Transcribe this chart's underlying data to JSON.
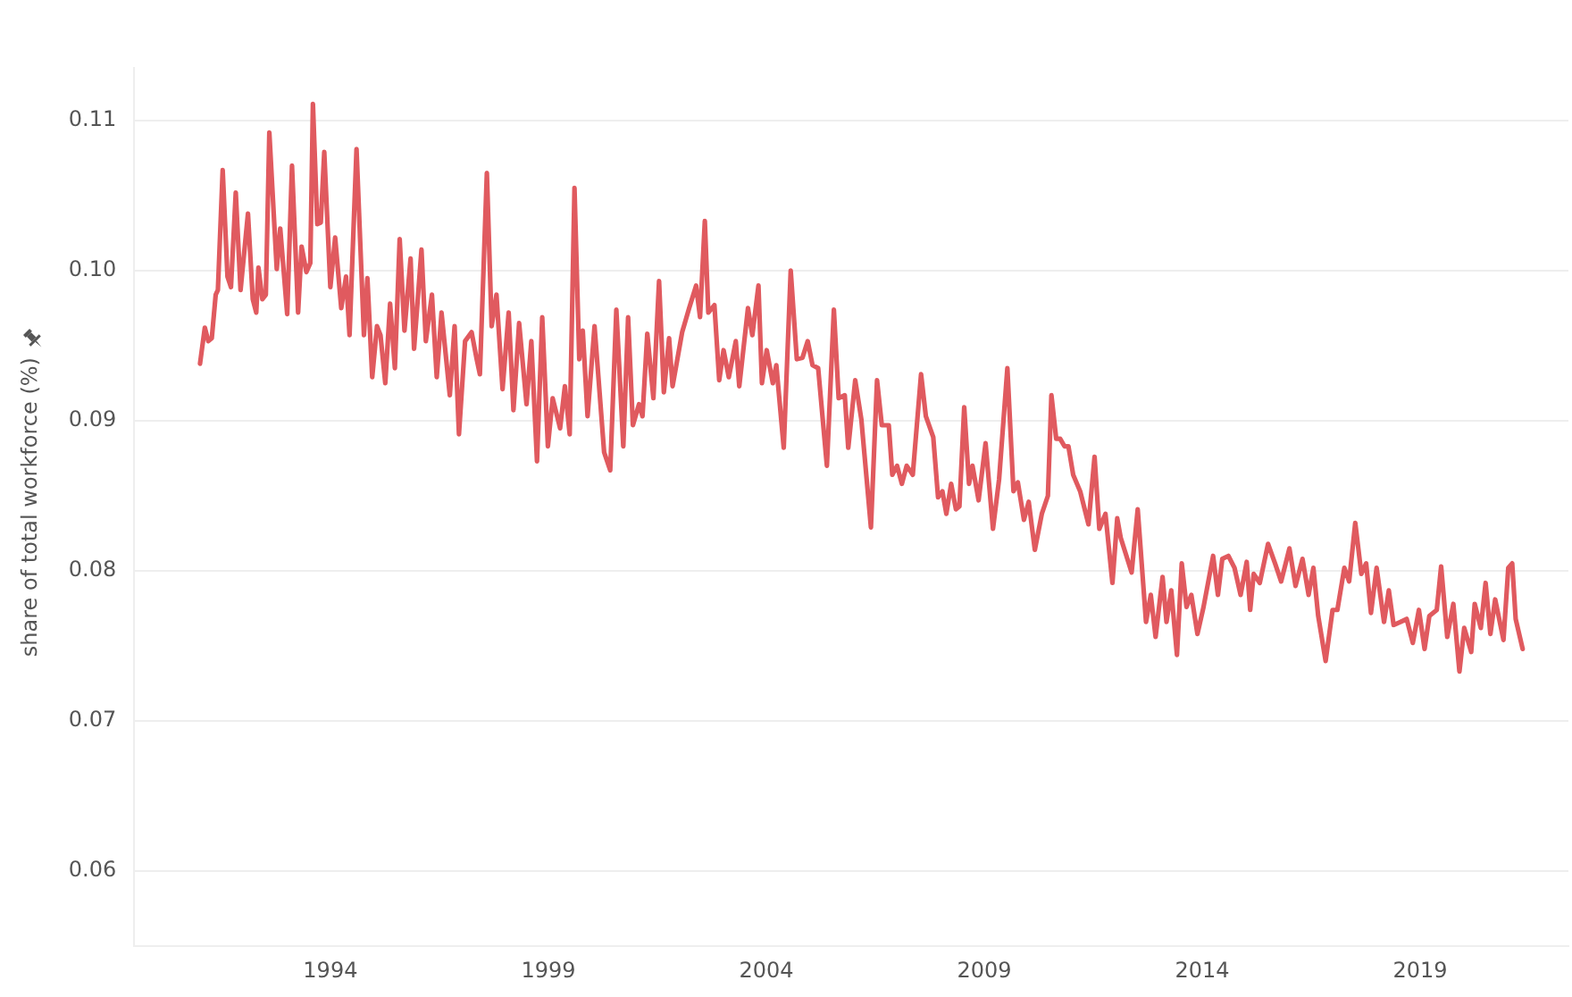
{
  "chart_data": {
    "type": "line",
    "ylabel": "share of total workforce (%)",
    "xlim": [
      1989.5,
      2022.4
    ],
    "xticks": [
      1994,
      1999,
      2004,
      2009,
      2014,
      2019
    ],
    "ylim": [
      0.055,
      0.1135
    ],
    "yticks": [
      0.06,
      0.07,
      0.08,
      0.09,
      {
        "value": 0.1,
        "label": "0.10"
      },
      0.11
    ],
    "grid": "y",
    "legend": false,
    "marker": "none",
    "line_style": "solid",
    "x": [
      1991.01,
      1991.12,
      1991.2,
      1991.28,
      1991.37,
      1991.42,
      1991.53,
      1991.64,
      1991.72,
      1991.83,
      1991.94,
      1992.11,
      1992.22,
      1992.3,
      1992.35,
      1992.44,
      1992.52,
      1992.6,
      1992.77,
      1992.85,
      1993.01,
      1993.12,
      1993.26,
      1993.34,
      1993.45,
      1993.54,
      1993.6,
      1993.7,
      1993.78,
      1993.86,
      1994.0,
      1994.11,
      1994.25,
      1994.36,
      1994.44,
      1994.6,
      1994.77,
      1994.85,
      1994.96,
      1995.07,
      1995.15,
      1995.26,
      1995.37,
      1995.48,
      1995.59,
      1995.7,
      1995.84,
      1995.92,
      1996.09,
      1996.19,
      1996.33,
      1996.44,
      1996.55,
      1996.74,
      1996.85,
      1996.95,
      1997.09,
      1997.24,
      1997.35,
      1997.43,
      1997.59,
      1997.7,
      1997.81,
      1997.95,
      1998.09,
      1998.2,
      1998.33,
      1998.5,
      1998.61,
      1998.74,
      1998.86,
      1998.99,
      1999.1,
      1999.27,
      1999.38,
      1999.49,
      1999.6,
      1999.71,
      1999.79,
      1999.9,
      2000.06,
      2000.28,
      2000.42,
      2000.56,
      2000.72,
      2000.83,
      2000.94,
      2001.08,
      2001.16,
      2001.27,
      2001.41,
      2001.54,
      2001.65,
      2001.77,
      2001.85,
      2002.07,
      2002.23,
      2002.39,
      2002.48,
      2002.59,
      2002.67,
      2002.81,
      2002.92,
      2003.02,
      2003.14,
      2003.3,
      2003.38,
      2003.58,
      2003.68,
      2003.82,
      2003.9,
      2004.01,
      2004.15,
      2004.23,
      2004.4,
      2004.56,
      2004.7,
      2004.83,
      2004.95,
      2005.06,
      2005.19,
      2005.39,
      2005.55,
      2005.66,
      2005.8,
      2005.88,
      2006.04,
      2006.18,
      2006.4,
      2006.54,
      2006.65,
      2006.81,
      2006.89,
      2007.0,
      2007.11,
      2007.22,
      2007.36,
      2007.55,
      2007.66,
      2007.83,
      2007.94,
      2008.04,
      2008.13,
      2008.24,
      2008.35,
      2008.43,
      2008.54,
      2008.65,
      2008.73,
      2008.87,
      2009.03,
      2009.2,
      2009.34,
      2009.53,
      2009.67,
      2009.77,
      2009.91,
      2010.02,
      2010.16,
      2010.32,
      2010.46,
      2010.54,
      2010.65,
      2010.74,
      2010.84,
      2010.93,
      2011.04,
      2011.2,
      2011.39,
      2011.53,
      2011.64,
      2011.78,
      2011.94,
      2012.05,
      2012.13,
      2012.38,
      2012.52,
      2012.71,
      2012.82,
      2012.93,
      2013.09,
      2013.18,
      2013.29,
      2013.42,
      2013.53,
      2013.64,
      2013.75,
      2013.89,
      2014.03,
      2014.25,
      2014.36,
      2014.46,
      2014.6,
      2014.74,
      2014.88,
      2015.02,
      2015.1,
      2015.18,
      2015.32,
      2015.51,
      2015.67,
      2015.81,
      2016.0,
      2016.14,
      2016.3,
      2016.44,
      2016.55,
      2016.66,
      2016.83,
      2016.99,
      2017.1,
      2017.26,
      2017.37,
      2017.51,
      2017.65,
      2017.76,
      2017.87,
      2018.0,
      2018.17,
      2018.28,
      2018.39,
      2018.55,
      2018.69,
      2018.83,
      2018.97,
      2019.1,
      2019.21,
      2019.38,
      2019.48,
      2019.62,
      2019.76,
      2019.9,
      2020.01,
      2020.17,
      2020.25,
      2020.39,
      2020.5,
      2020.61,
      2020.72,
      2020.91,
      2021.02,
      2021.11,
      2021.19,
      2021.35
    ],
    "series": [
      {
        "color": "#e05a5f",
        "values": [
          0.0938,
          0.0962,
          0.0953,
          0.0955,
          0.0984,
          0.0987,
          0.1067,
          0.0996,
          0.0989,
          0.1052,
          0.0987,
          0.1038,
          0.0981,
          0.0972,
          0.1002,
          0.0981,
          0.0984,
          0.1092,
          0.1001,
          0.1028,
          0.0971,
          0.107,
          0.0972,
          0.1016,
          0.0999,
          0.1005,
          0.1111,
          0.1031,
          0.1032,
          0.1079,
          0.0989,
          0.1022,
          0.0975,
          0.0996,
          0.0957,
          0.1081,
          0.0957,
          0.0995,
          0.0929,
          0.0963,
          0.0957,
          0.0925,
          0.0978,
          0.0935,
          0.1021,
          0.096,
          0.1008,
          0.0948,
          0.1014,
          0.0953,
          0.0984,
          0.0929,
          0.0972,
          0.0917,
          0.0963,
          0.0891,
          0.0953,
          0.0959,
          0.0942,
          0.0931,
          0.1065,
          0.0963,
          0.0984,
          0.0921,
          0.0972,
          0.0907,
          0.0965,
          0.0911,
          0.0953,
          0.0873,
          0.0969,
          0.0883,
          0.0915,
          0.0895,
          0.0923,
          0.0891,
          0.1055,
          0.0941,
          0.096,
          0.0903,
          0.0963,
          0.0879,
          0.0867,
          0.0974,
          0.0883,
          0.0969,
          0.0897,
          0.0911,
          0.0903,
          0.0958,
          0.0915,
          0.0993,
          0.0919,
          0.0955,
          0.0923,
          0.0959,
          0.0975,
          0.099,
          0.0969,
          0.1033,
          0.0972,
          0.0977,
          0.0927,
          0.0947,
          0.0929,
          0.0953,
          0.0923,
          0.0975,
          0.0957,
          0.099,
          0.0925,
          0.0947,
          0.0925,
          0.0937,
          0.0882,
          0.1,
          0.0941,
          0.0942,
          0.0953,
          0.0937,
          0.0935,
          0.087,
          0.0974,
          0.0915,
          0.0917,
          0.0882,
          0.0927,
          0.0901,
          0.0829,
          0.0927,
          0.0897,
          0.0897,
          0.0864,
          0.087,
          0.0858,
          0.087,
          0.0864,
          0.0931,
          0.0903,
          0.0889,
          0.0849,
          0.0853,
          0.0838,
          0.0858,
          0.0841,
          0.0843,
          0.0909,
          0.0858,
          0.087,
          0.0847,
          0.0885,
          0.0828,
          0.0861,
          0.0935,
          0.0853,
          0.0859,
          0.0834,
          0.0846,
          0.0814,
          0.0838,
          0.085,
          0.0917,
          0.0888,
          0.0888,
          0.0883,
          0.0883,
          0.0864,
          0.0853,
          0.0831,
          0.0876,
          0.0828,
          0.0838,
          0.0792,
          0.0835,
          0.0822,
          0.0799,
          0.0841,
          0.0766,
          0.0784,
          0.0756,
          0.0796,
          0.0766,
          0.0787,
          0.0744,
          0.0805,
          0.0776,
          0.0784,
          0.0758,
          0.0776,
          0.081,
          0.0784,
          0.0808,
          0.081,
          0.0802,
          0.0784,
          0.0806,
          0.0774,
          0.0798,
          0.0792,
          0.0818,
          0.0805,
          0.0793,
          0.0815,
          0.079,
          0.0808,
          0.0784,
          0.0802,
          0.077,
          0.074,
          0.0774,
          0.0774,
          0.0802,
          0.0793,
          0.0832,
          0.0798,
          0.0805,
          0.0772,
          0.0802,
          0.0766,
          0.0787,
          0.0764,
          0.0766,
          0.0768,
          0.0752,
          0.0774,
          0.0748,
          0.077,
          0.0774,
          0.0803,
          0.0756,
          0.0778,
          0.0733,
          0.0762,
          0.0746,
          0.0778,
          0.0762,
          0.0792,
          0.0758,
          0.0781,
          0.0754,
          0.0802,
          0.0805,
          0.0768,
          0.0748
        ]
      }
    ]
  }
}
